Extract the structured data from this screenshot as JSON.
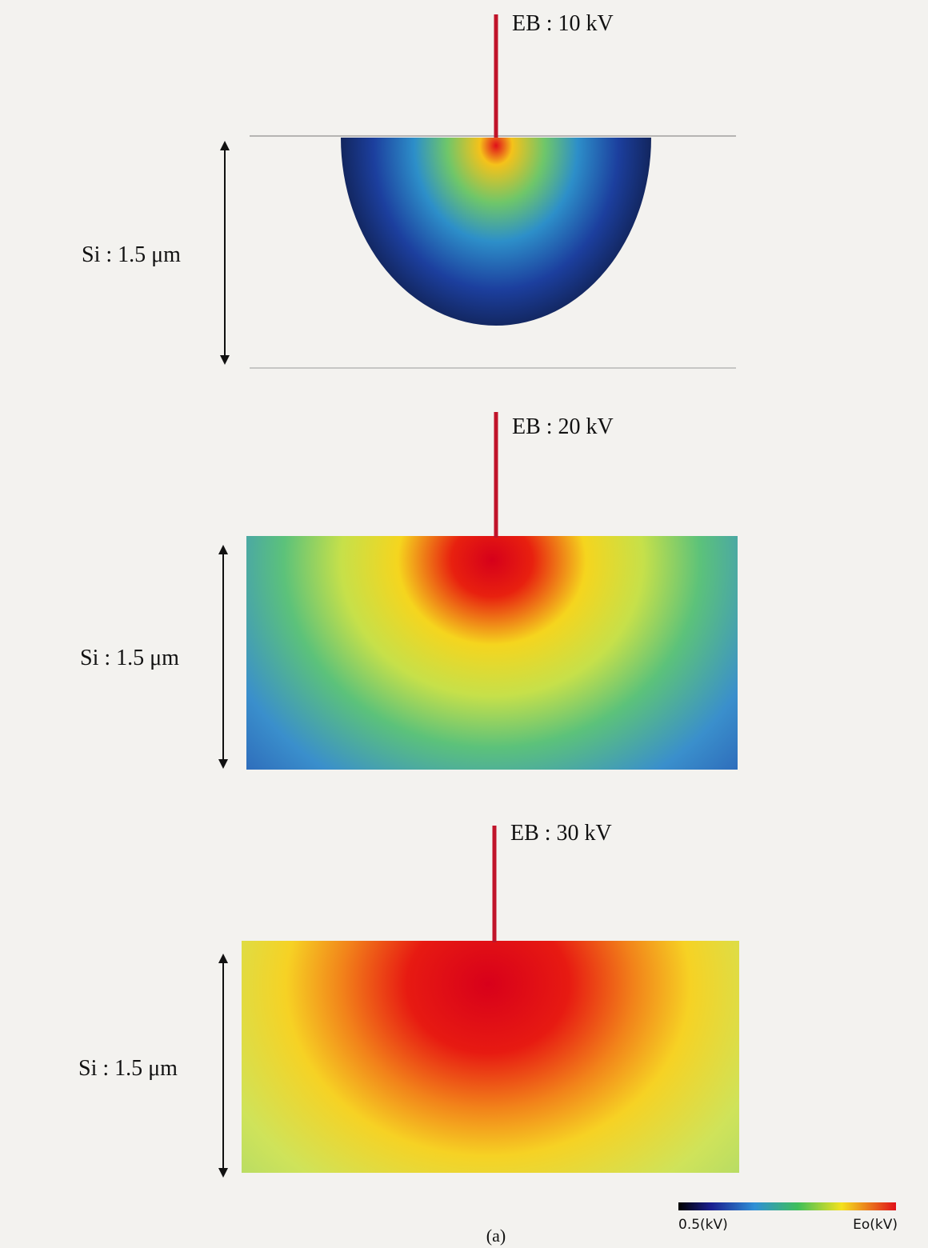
{
  "panels": [
    {
      "beam_label": "EB : 10 kV",
      "depth_label": "Si : 1.5 μm"
    },
    {
      "beam_label": "EB : 20 kV",
      "depth_label": "Si : 1.5 μm"
    },
    {
      "beam_label": "EB : 30 kV",
      "depth_label": "Si : 1.5 μm"
    }
  ],
  "colorbar": {
    "min_label": "0.5(kV)",
    "max_label": "Eo(kV)"
  },
  "caption": "(a)"
}
